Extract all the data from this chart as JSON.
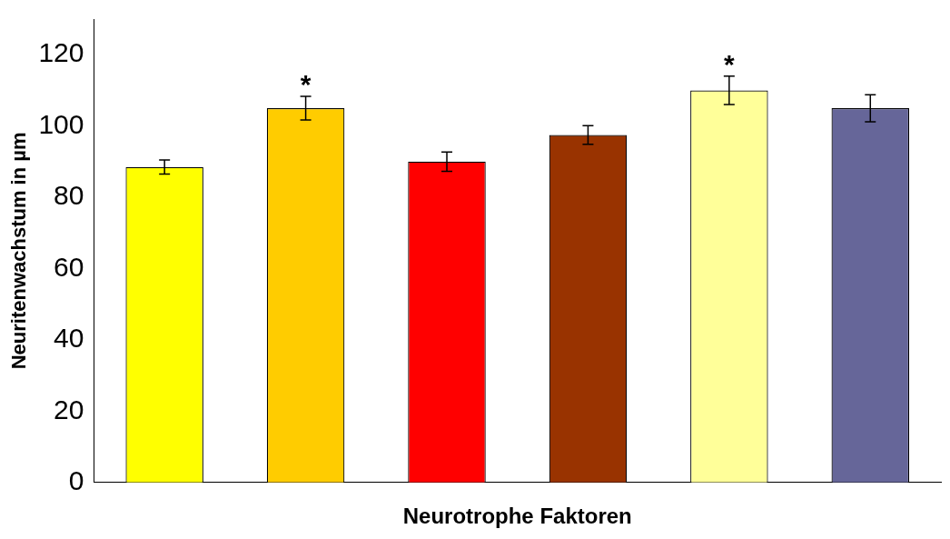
{
  "chart_data": {
    "type": "bar",
    "xlabel": "Neurotrophe Faktoren",
    "ylabel": "Neuritenwachstum in µm",
    "categories": [
      null,
      null,
      null,
      null,
      null,
      null
    ],
    "values": [
      88.5,
      105,
      90,
      97.5,
      110,
      105
    ],
    "colors": [
      "#ffff00",
      "#ffcc00",
      "#ff0000",
      "#993300",
      "#ffff99",
      "#666699"
    ],
    "errors": [
      2,
      3.3,
      2.7,
      2.6,
      4,
      3.8
    ],
    "value_labels": [
      null,
      "*",
      null,
      null,
      "*",
      null
    ],
    "ylim": [
      0,
      130
    ],
    "yticks": [
      0,
      20,
      40,
      60,
      80,
      100,
      120
    ],
    "grid": false,
    "legend": false
  }
}
